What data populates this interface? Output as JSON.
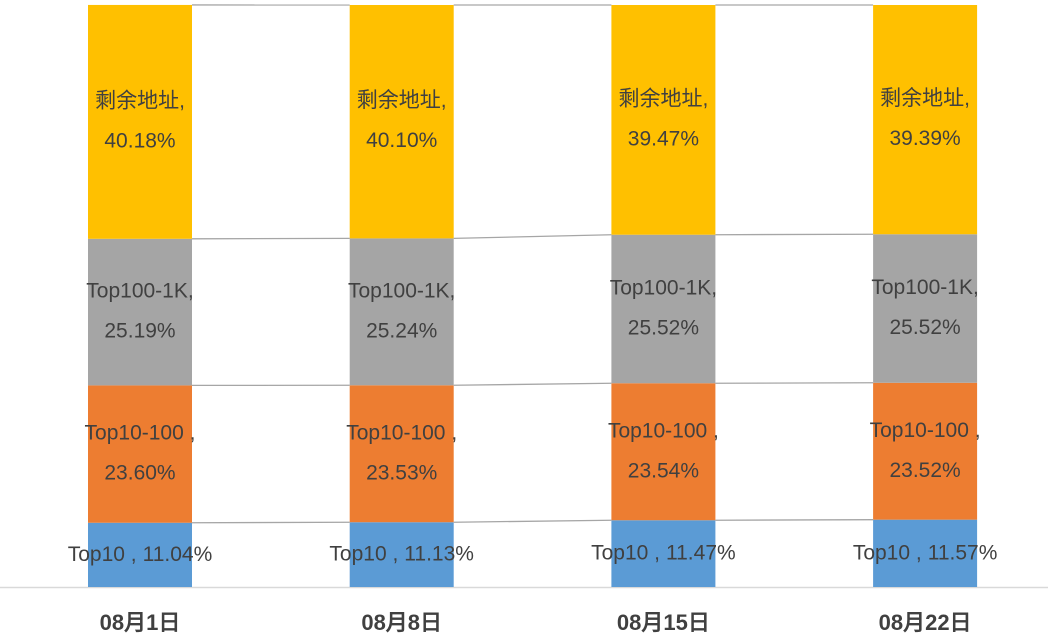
{
  "chart_data": {
    "type": "stacked_bar",
    "categories": [
      "08月1日",
      "08月8日",
      "08月15日",
      "08月22日"
    ],
    "ylim": [
      0,
      100
    ],
    "series": [
      {
        "name": "Top10 ,",
        "color": "#5b9bd5",
        "values": [
          11.04,
          11.13,
          11.47,
          11.57
        ],
        "value_labels": [
          "11.04%",
          "11.13%",
          "11.47%",
          "11.57%"
        ]
      },
      {
        "name": "Top10-100 ,",
        "color": "#ed7d31",
        "values": [
          23.6,
          23.53,
          23.54,
          23.52
        ],
        "value_labels": [
          "23.60%",
          "23.53%",
          "23.54%",
          "23.52%"
        ]
      },
      {
        "name": "Top100-1K,",
        "color": "#a5a5a5",
        "values": [
          25.19,
          25.24,
          25.52,
          25.52
        ],
        "value_labels": [
          "25.19%",
          "25.24%",
          "25.52%",
          "25.52%"
        ]
      },
      {
        "name": "剩余地址,",
        "color": "#ffc000",
        "values": [
          40.18,
          40.1,
          39.47,
          39.39
        ],
        "value_labels": [
          "40.18%",
          "40.10%",
          "39.47%",
          "39.39%"
        ]
      }
    ]
  }
}
